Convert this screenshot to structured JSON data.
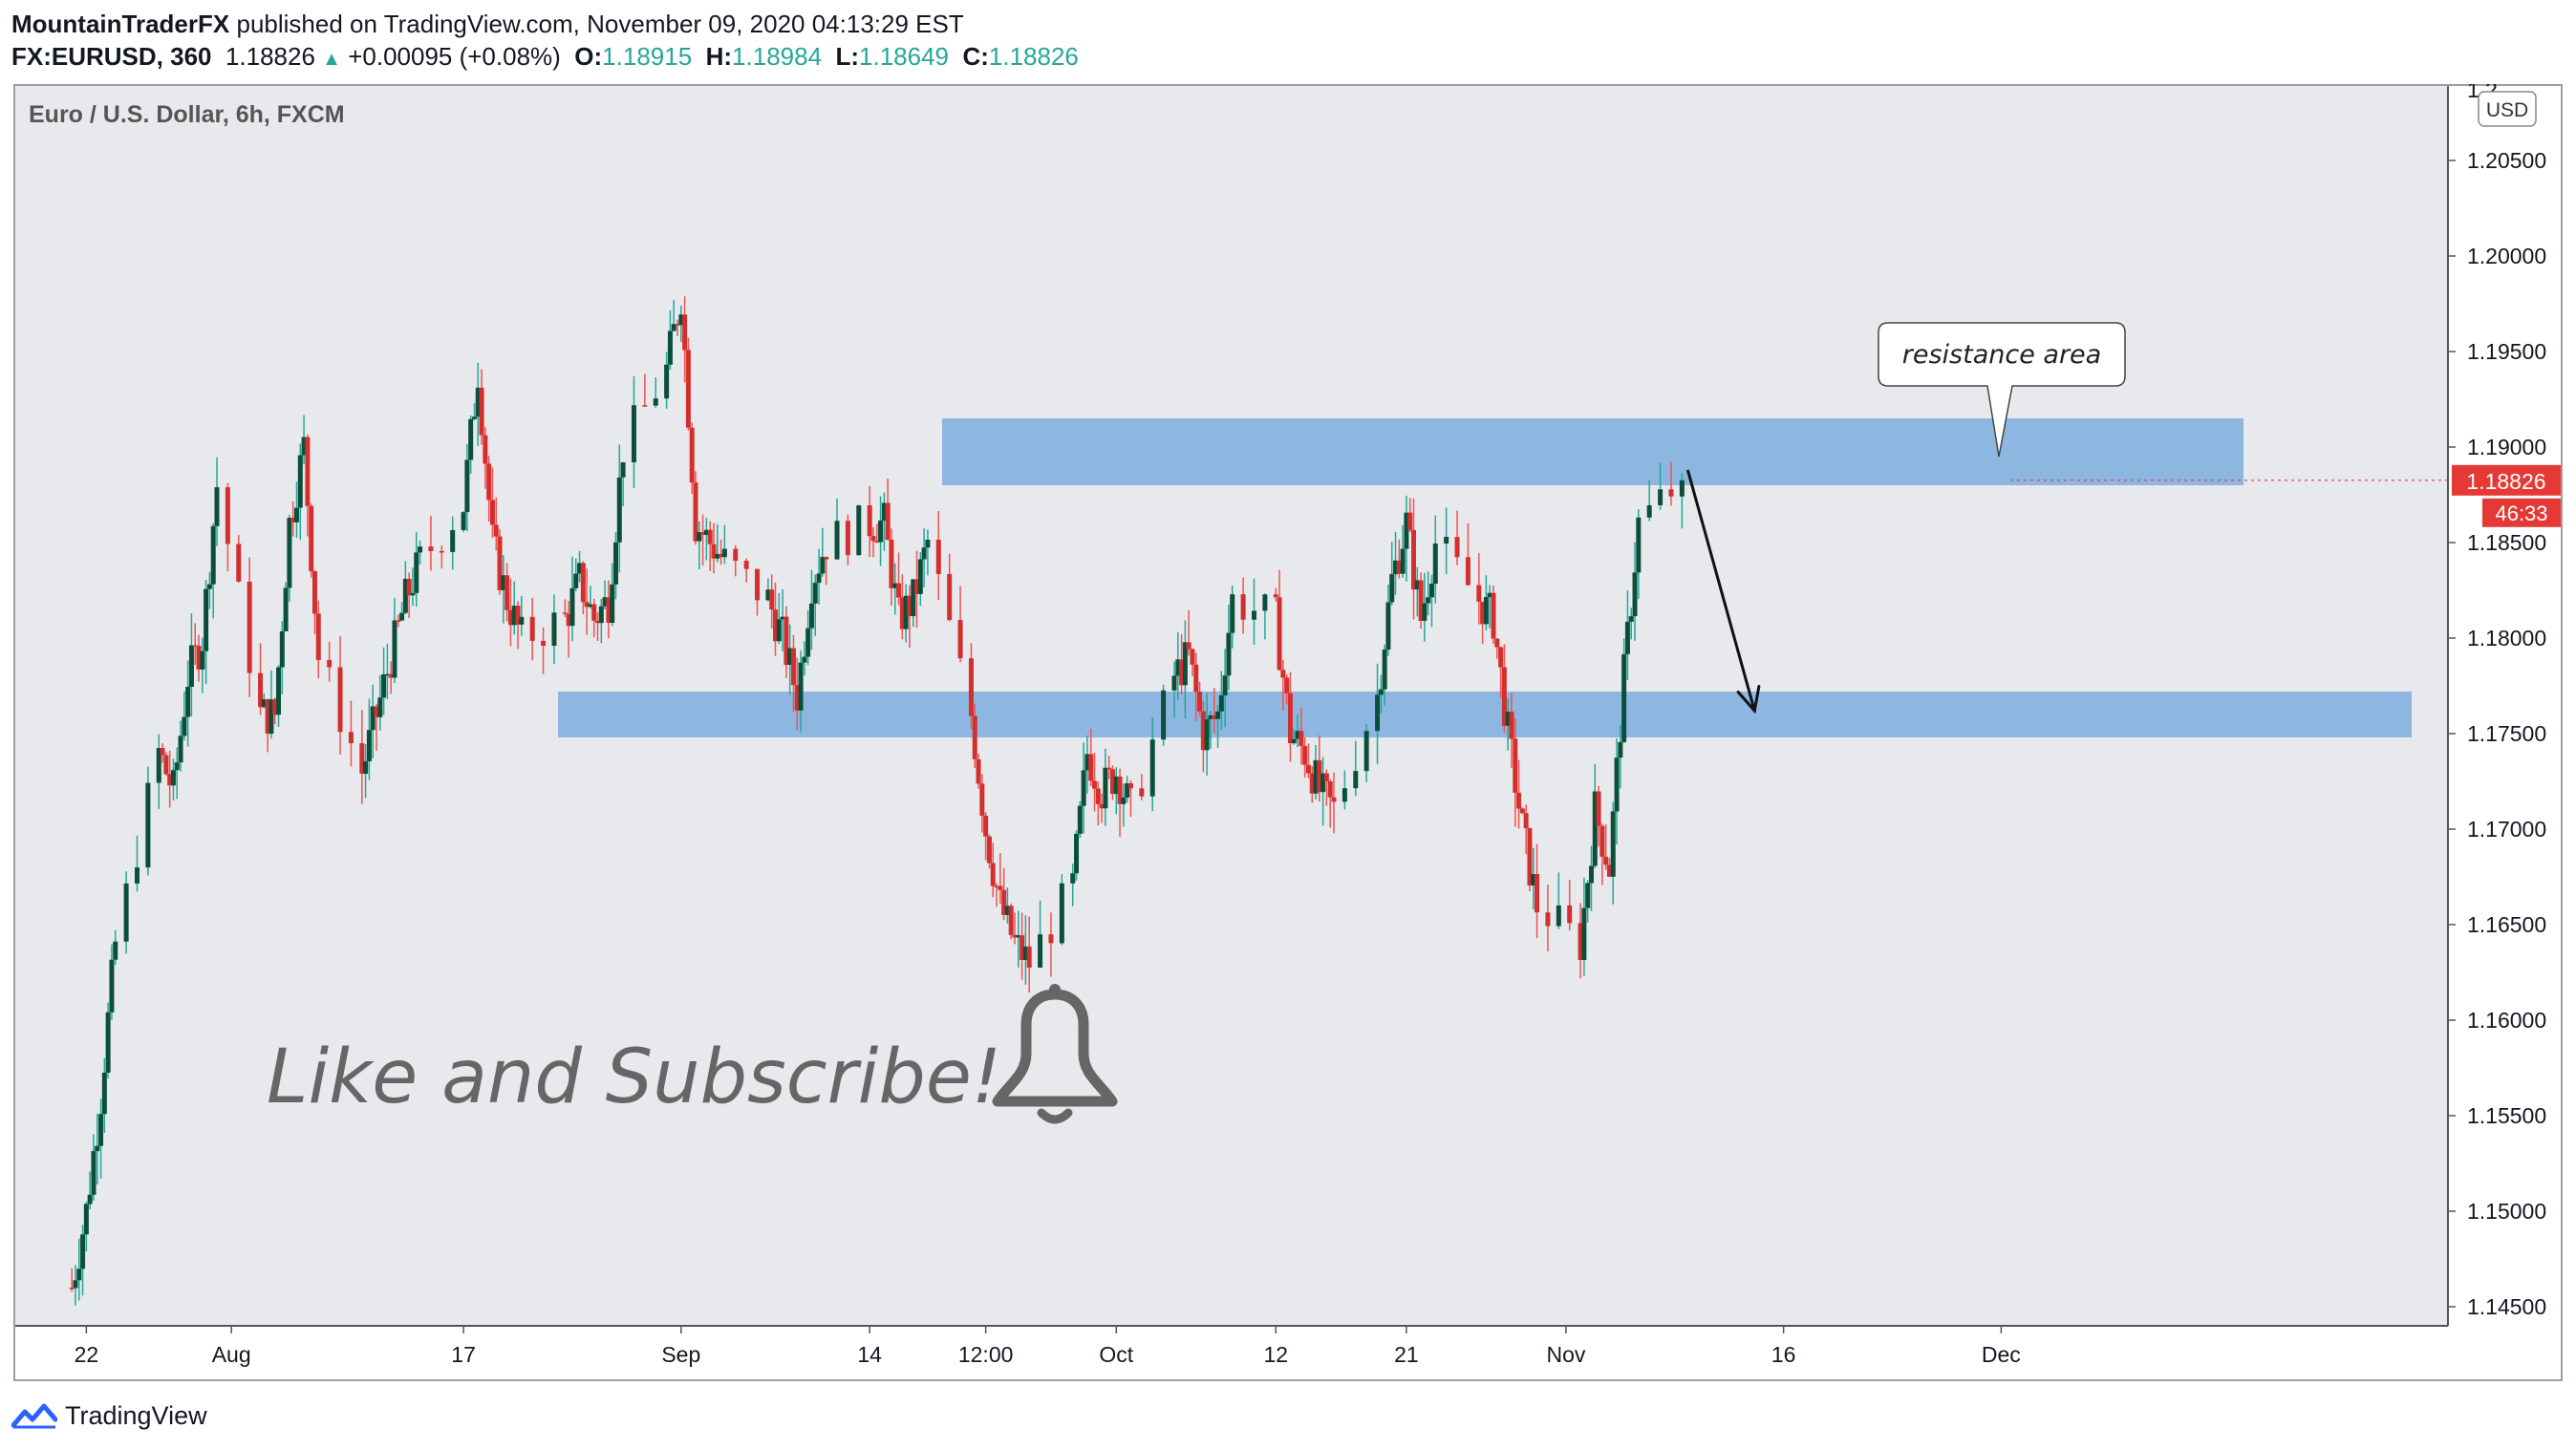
{
  "header": {
    "author": "MountainTraderFX",
    "published_text": "published on TradingView.com, November 09, 2020 04:13:29 EST",
    "symbol": "FX:EURUSD, 360",
    "last": "1.18826",
    "change": "+0.00095 (+0.08%)",
    "o_label": "O:",
    "o_value": "1.18915",
    "h_label": "H:",
    "h_value": "1.18984",
    "l_label": "L:",
    "l_value": "1.18649",
    "c_label": "C:",
    "c_value": "1.18826"
  },
  "footer": {
    "brand": "TradingView"
  },
  "colors": {
    "up": "#26a69a",
    "down": "#ef5350",
    "up_body": "#0b4f3a",
    "down_body": "#d32f2f",
    "zone": "#6fa4dc",
    "bg": "#e8e9ed",
    "price_tag": "#e53935",
    "text_gray": "#666666"
  },
  "chart_data": {
    "type": "candlestick",
    "title": "Euro / U.S. Dollar, 6h, FXCM",
    "currency_label": "USD",
    "ylim": [
      1.144,
      1.209
    ],
    "y_ticks": [
      "1.14500",
      "1.15000",
      "1.15500",
      "1.16000",
      "1.16500",
      "1.17000",
      "1.17500",
      "1.18000",
      "1.18500",
      "1.19000",
      "1.19500",
      "1.20000",
      "1.20500"
    ],
    "top_partial_label": "1.2",
    "x_ticks": [
      "22",
      "Aug",
      "17",
      "Sep",
      "14",
      "12:00",
      "Oct",
      "12",
      "21",
      "Nov",
      "16",
      "Dec"
    ],
    "current_price": "1.18826",
    "countdown": "46:33",
    "anchors": [
      [
        "2020-07-21",
        1.146
      ],
      [
        "2020-07-22",
        1.15
      ],
      [
        "2020-07-23",
        1.156
      ],
      [
        "2020-07-24",
        1.164
      ],
      [
        "2020-07-27",
        1.174
      ],
      [
        "2020-07-28",
        1.172
      ],
      [
        "2020-07-29",
        1.178
      ],
      [
        "2020-07-30",
        1.18
      ],
      [
        "2020-07-31",
        1.188
      ],
      [
        "2020-08-03",
        1.176
      ],
      [
        "2020-08-04",
        1.176
      ],
      [
        "2020-08-05",
        1.186
      ],
      [
        "2020-08-06",
        1.19
      ],
      [
        "2020-08-07",
        1.179
      ],
      [
        "2020-08-10",
        1.173
      ],
      [
        "2020-08-11",
        1.176
      ],
      [
        "2020-08-12",
        1.179
      ],
      [
        "2020-08-13",
        1.182
      ],
      [
        "2020-08-14",
        1.184
      ],
      [
        "2020-08-17",
        1.187
      ],
      [
        "2020-08-18",
        1.194
      ],
      [
        "2020-08-19",
        1.185
      ],
      [
        "2020-08-20",
        1.182
      ],
      [
        "2020-08-21",
        1.18
      ],
      [
        "2020-08-24",
        1.181
      ],
      [
        "2020-08-25",
        1.183
      ],
      [
        "2020-08-26",
        1.181
      ],
      [
        "2020-08-27",
        1.182
      ],
      [
        "2020-08-28",
        1.19
      ],
      [
        "2020-08-31",
        1.194
      ],
      [
        "2020-09-01",
        1.198
      ],
      [
        "2020-09-02",
        1.186
      ],
      [
        "2020-09-03",
        1.185
      ],
      [
        "2020-09-04",
        1.184
      ],
      [
        "2020-09-07",
        1.182
      ],
      [
        "2020-09-08",
        1.18
      ],
      [
        "2020-09-09",
        1.177
      ],
      [
        "2020-09-10",
        1.183
      ],
      [
        "2020-09-11",
        1.185
      ],
      [
        "2020-09-14",
        1.186
      ],
      [
        "2020-09-15",
        1.186
      ],
      [
        "2020-09-16",
        1.181
      ],
      [
        "2020-09-17",
        1.182
      ],
      [
        "2020-09-18",
        1.185
      ],
      [
        "2020-09-21",
        1.176
      ],
      [
        "2020-09-22",
        1.17
      ],
      [
        "2020-09-23",
        1.166
      ],
      [
        "2020-09-24",
        1.164
      ],
      [
        "2020-09-25",
        1.163
      ],
      [
        "2020-09-28",
        1.167
      ],
      [
        "2020-09-29",
        1.174
      ],
      [
        "2020-09-30",
        1.172
      ],
      [
        "2020-10-01",
        1.173
      ],
      [
        "2020-10-02",
        1.171
      ],
      [
        "2020-10-05",
        1.178
      ],
      [
        "2020-10-06",
        1.179
      ],
      [
        "2020-10-07",
        1.175
      ],
      [
        "2020-10-08",
        1.176
      ],
      [
        "2020-10-09",
        1.182
      ],
      [
        "2020-10-12",
        1.181
      ],
      [
        "2020-10-13",
        1.175
      ],
      [
        "2020-10-14",
        1.174
      ],
      [
        "2020-10-15",
        1.172
      ],
      [
        "2020-10-16",
        1.171
      ],
      [
        "2020-10-19",
        1.177
      ],
      [
        "2020-10-20",
        1.183
      ],
      [
        "2020-10-21",
        1.186
      ],
      [
        "2020-10-22",
        1.181
      ],
      [
        "2020-10-23",
        1.185
      ],
      [
        "2020-10-26",
        1.182
      ],
      [
        "2020-10-27",
        1.181
      ],
      [
        "2020-10-28",
        1.175
      ],
      [
        "2020-10-29",
        1.17
      ],
      [
        "2020-10-30",
        1.166
      ],
      [
        "2020-11-02",
        1.164
      ],
      [
        "2020-11-03",
        1.171
      ],
      [
        "2020-11-04",
        1.168
      ],
      [
        "2020-11-05",
        1.178
      ],
      [
        "2020-11-06",
        1.186
      ],
      [
        "2020-11-09",
        1.18826
      ]
    ],
    "annotations": {
      "resistance_zone": [
        1.188,
        1.1915
      ],
      "support_zone": [
        1.1748,
        1.1772
      ],
      "resistance_label": "resistance area",
      "arrow_from": [
        "2020-11-09",
        1.1888
      ],
      "arrow_to": [
        "2020-11-14",
        1.1762
      ],
      "watermark": "Like and Subscribe!"
    }
  }
}
